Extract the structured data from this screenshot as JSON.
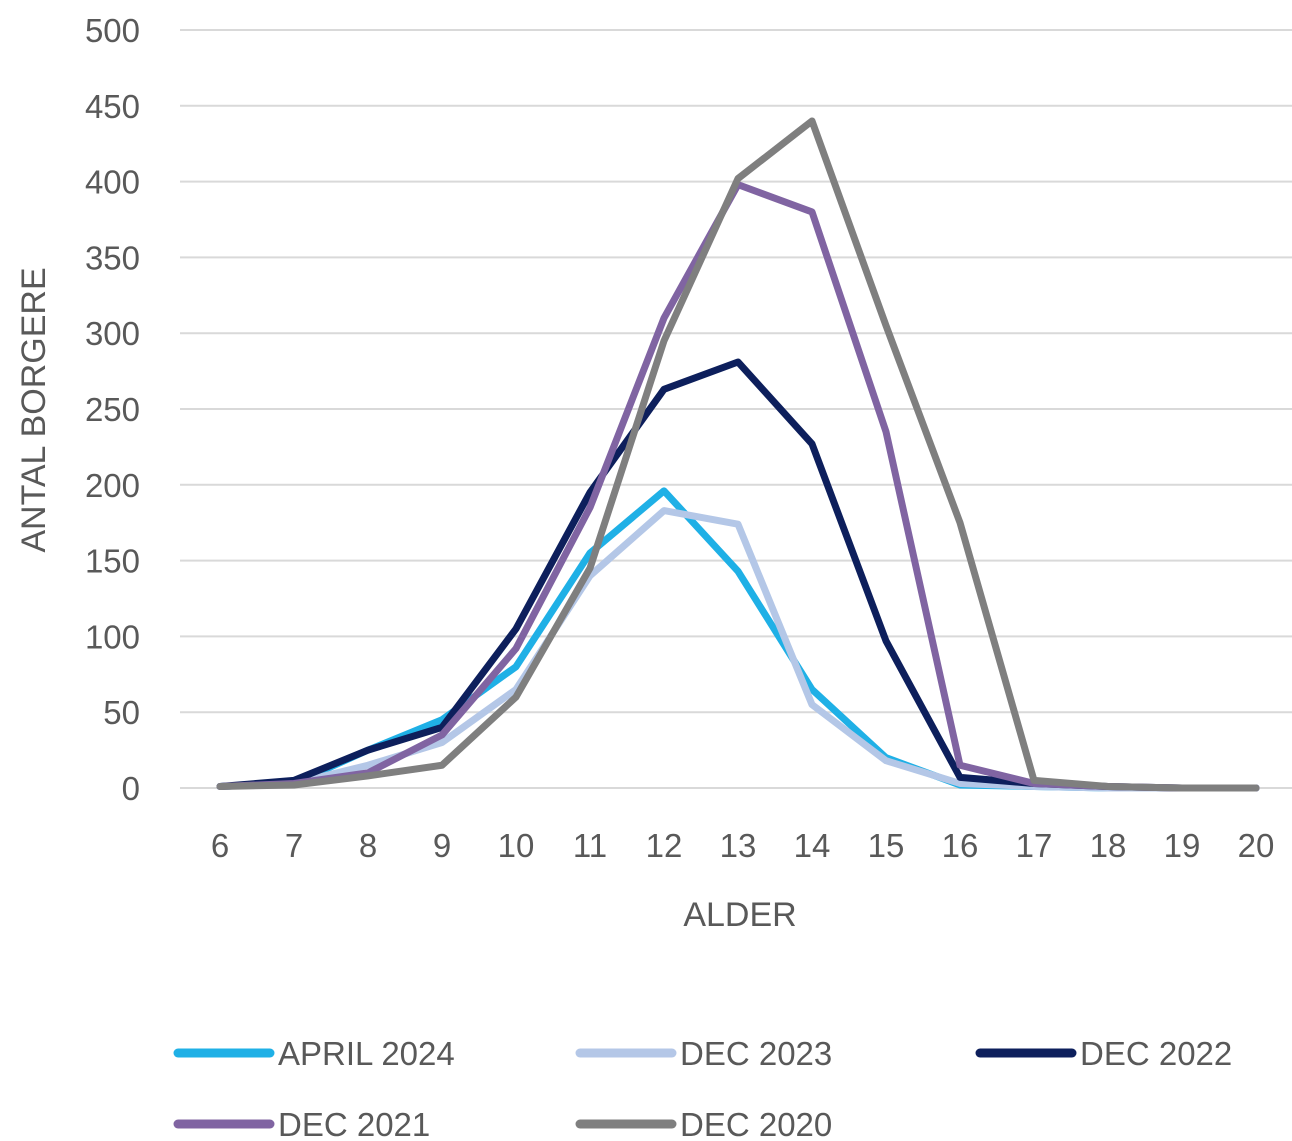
{
  "chart_data": {
    "type": "line",
    "title": "",
    "xlabel": "ALDER",
    "ylabel": "ANTAL BORGERE",
    "categories": [
      "6",
      "7",
      "8",
      "9",
      "10",
      "11",
      "12",
      "13",
      "14",
      "15",
      "16",
      "17",
      "18",
      "19",
      "20"
    ],
    "ylim": [
      0,
      500
    ],
    "yticks": [
      "0",
      "50",
      "100",
      "150",
      "200",
      "250",
      "300",
      "350",
      "400",
      "450",
      "500"
    ],
    "grid": true,
    "legend_position": "bottom",
    "series": [
      {
        "name": "APRIL 2024",
        "color": "#1fb0e6",
        "values": [
          1,
          3,
          25,
          45,
          80,
          155,
          196,
          143,
          65,
          20,
          2,
          1,
          0,
          0,
          0
        ]
      },
      {
        "name": "DEC 2023",
        "color": "#b4c7e7",
        "values": [
          1,
          3,
          15,
          30,
          65,
          140,
          183,
          174,
          55,
          18,
          3,
          1,
          0,
          0,
          0
        ]
      },
      {
        "name": "DEC 2022",
        "color": "#0d1f5c",
        "values": [
          1,
          5,
          25,
          40,
          105,
          195,
          263,
          281,
          227,
          97,
          7,
          3,
          1,
          0,
          0
        ]
      },
      {
        "name": "DEC 2021",
        "color": "#8064a2",
        "values": [
          1,
          3,
          10,
          35,
          92,
          185,
          310,
          398,
          380,
          235,
          15,
          3,
          1,
          0,
          0
        ]
      },
      {
        "name": "DEC 2020",
        "color": "#7f7f7f",
        "values": [
          1,
          2,
          8,
          15,
          60,
          145,
          295,
          402,
          440,
          305,
          175,
          5,
          1,
          0,
          0
        ]
      }
    ]
  }
}
